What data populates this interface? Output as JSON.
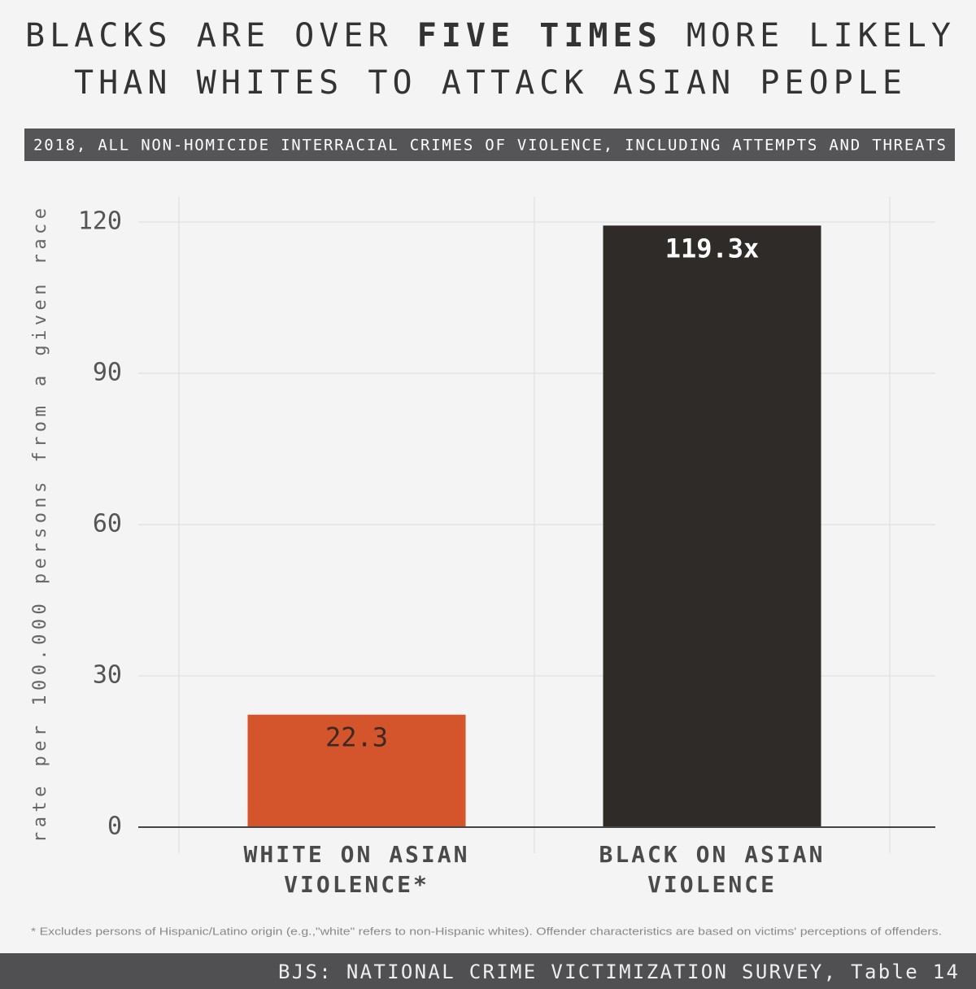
{
  "chart_data": {
    "type": "bar",
    "title_line1": [
      "BLACKS ARE OVER ",
      "FIVE TIMES",
      " MORE LIKELY"
    ],
    "title_line2": "THAN WHITES TO ATTACK ASIAN PEOPLE",
    "subtitle": "2018, ALL NON-HOMICIDE INTERRACIAL CRIMES OF VIOLENCE, INCLUDING ATTEMPTS AND THREATS",
    "y_label": "rate per 100.000 persons from a given race",
    "categories": [
      "WHITE ON ASIAN VIOLENCE*",
      "BLACK ON ASIAN VIOLENCE"
    ],
    "values": [
      22.3,
      119.3
    ],
    "value_labels": [
      "22.3",
      "119.3x"
    ],
    "colors": [
      "#d4542b",
      "#2e2b29"
    ],
    "ylim": [
      0,
      125
    ],
    "yticks": [
      0,
      30,
      60,
      90,
      120
    ],
    "grid": true,
    "footnote": "* Excludes persons of Hispanic/Latino origin (e.g.,\"white\" refers to non-Hispanic whites). Offender characteristics are based on victims' perceptions of offenders.",
    "source": "BJS: NATIONAL CRIME VICTIMIZATION SURVEY, Table 14"
  }
}
